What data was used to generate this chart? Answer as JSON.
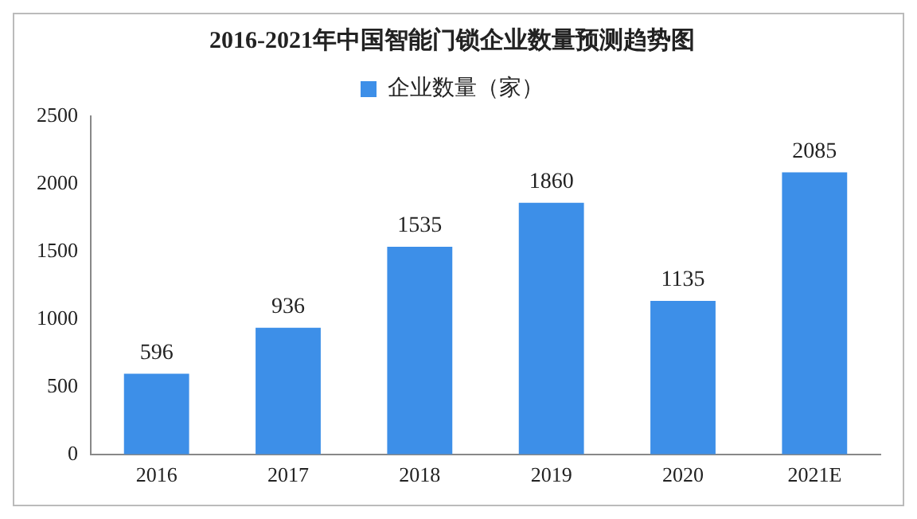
{
  "chart_data": {
    "type": "bar",
    "title": "2016-2021年中国智能门锁企业数量预测趋势图",
    "categories": [
      "2016",
      "2017",
      "2018",
      "2019",
      "2020",
      "2021E"
    ],
    "series": [
      {
        "name": "企业数量（家）",
        "color": "#3d8fe8",
        "values": [
          596,
          936,
          1535,
          1860,
          1135,
          2085
        ]
      }
    ],
    "ylim": [
      0,
      2500
    ],
    "yticks": [
      0,
      500,
      1000,
      1500,
      2000,
      2500
    ],
    "grid": false,
    "legend": "top",
    "data_labels": true
  }
}
